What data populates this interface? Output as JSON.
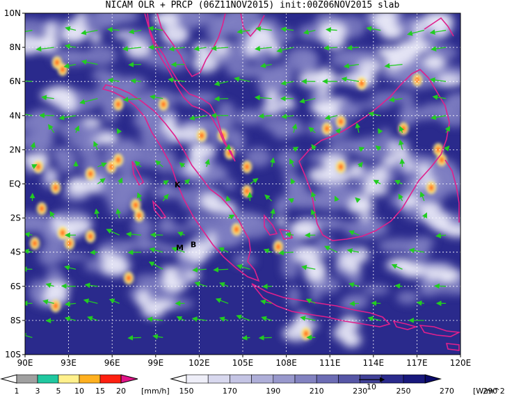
{
  "title": "NICAM OLR + PRCP (06Z11NOV2015) init:00Z06NOV2015 slab",
  "map": {
    "lat_range": [
      -10,
      10
    ],
    "lon_range": [
      90,
      120
    ],
    "lat_labels": [
      "10N",
      "8N",
      "6N",
      "4N",
      "2N",
      "EQ",
      "2S",
      "4S",
      "6S",
      "8S",
      "10S"
    ],
    "lon_labels": [
      "90E",
      "93E",
      "96E",
      "99E",
      "102E",
      "105E",
      "108E",
      "111E",
      "114E",
      "117E",
      "120E"
    ],
    "station_markers": [
      {
        "label": "K",
        "lon": 100.3,
        "lat": -0.2
      },
      {
        "label": "M",
        "lon": 100.4,
        "lat": -3.9
      },
      {
        "label": "B",
        "lon": 101.4,
        "lat": -3.7
      }
    ],
    "colors": {
      "ocean_dark": "#2a2a8c",
      "cloud_mid": "#7f7fc2",
      "cloud_light": "#e6e6f5",
      "coast": "#e0208c",
      "wind": "#22cc22",
      "grid": "#ffffff"
    }
  },
  "precip_colorbar": {
    "ticks": [
      "1",
      "3",
      "5",
      "10",
      "15",
      "20"
    ],
    "unit": "[mm/h]",
    "colors": [
      "#a0a0a0",
      "#20c8a0",
      "#fff08c",
      "#ffb020",
      "#ff2010",
      "#e01488"
    ]
  },
  "olr_colorbar": {
    "ticks": [
      "150",
      "170",
      "190",
      "210",
      "230",
      "250",
      "270",
      "290"
    ],
    "unit": "[W/m^2]",
    "colors": [
      "#ffffff",
      "#eeeef8",
      "#d8d8ee",
      "#c4c4e4",
      "#aeaed8",
      "#9898cc",
      "#8282c0",
      "#6c6cb4",
      "#5656a6",
      "#404098",
      "#2a2a8c",
      "#18187c",
      "#0a0a6a"
    ]
  },
  "wind_reference": {
    "label": "10"
  }
}
